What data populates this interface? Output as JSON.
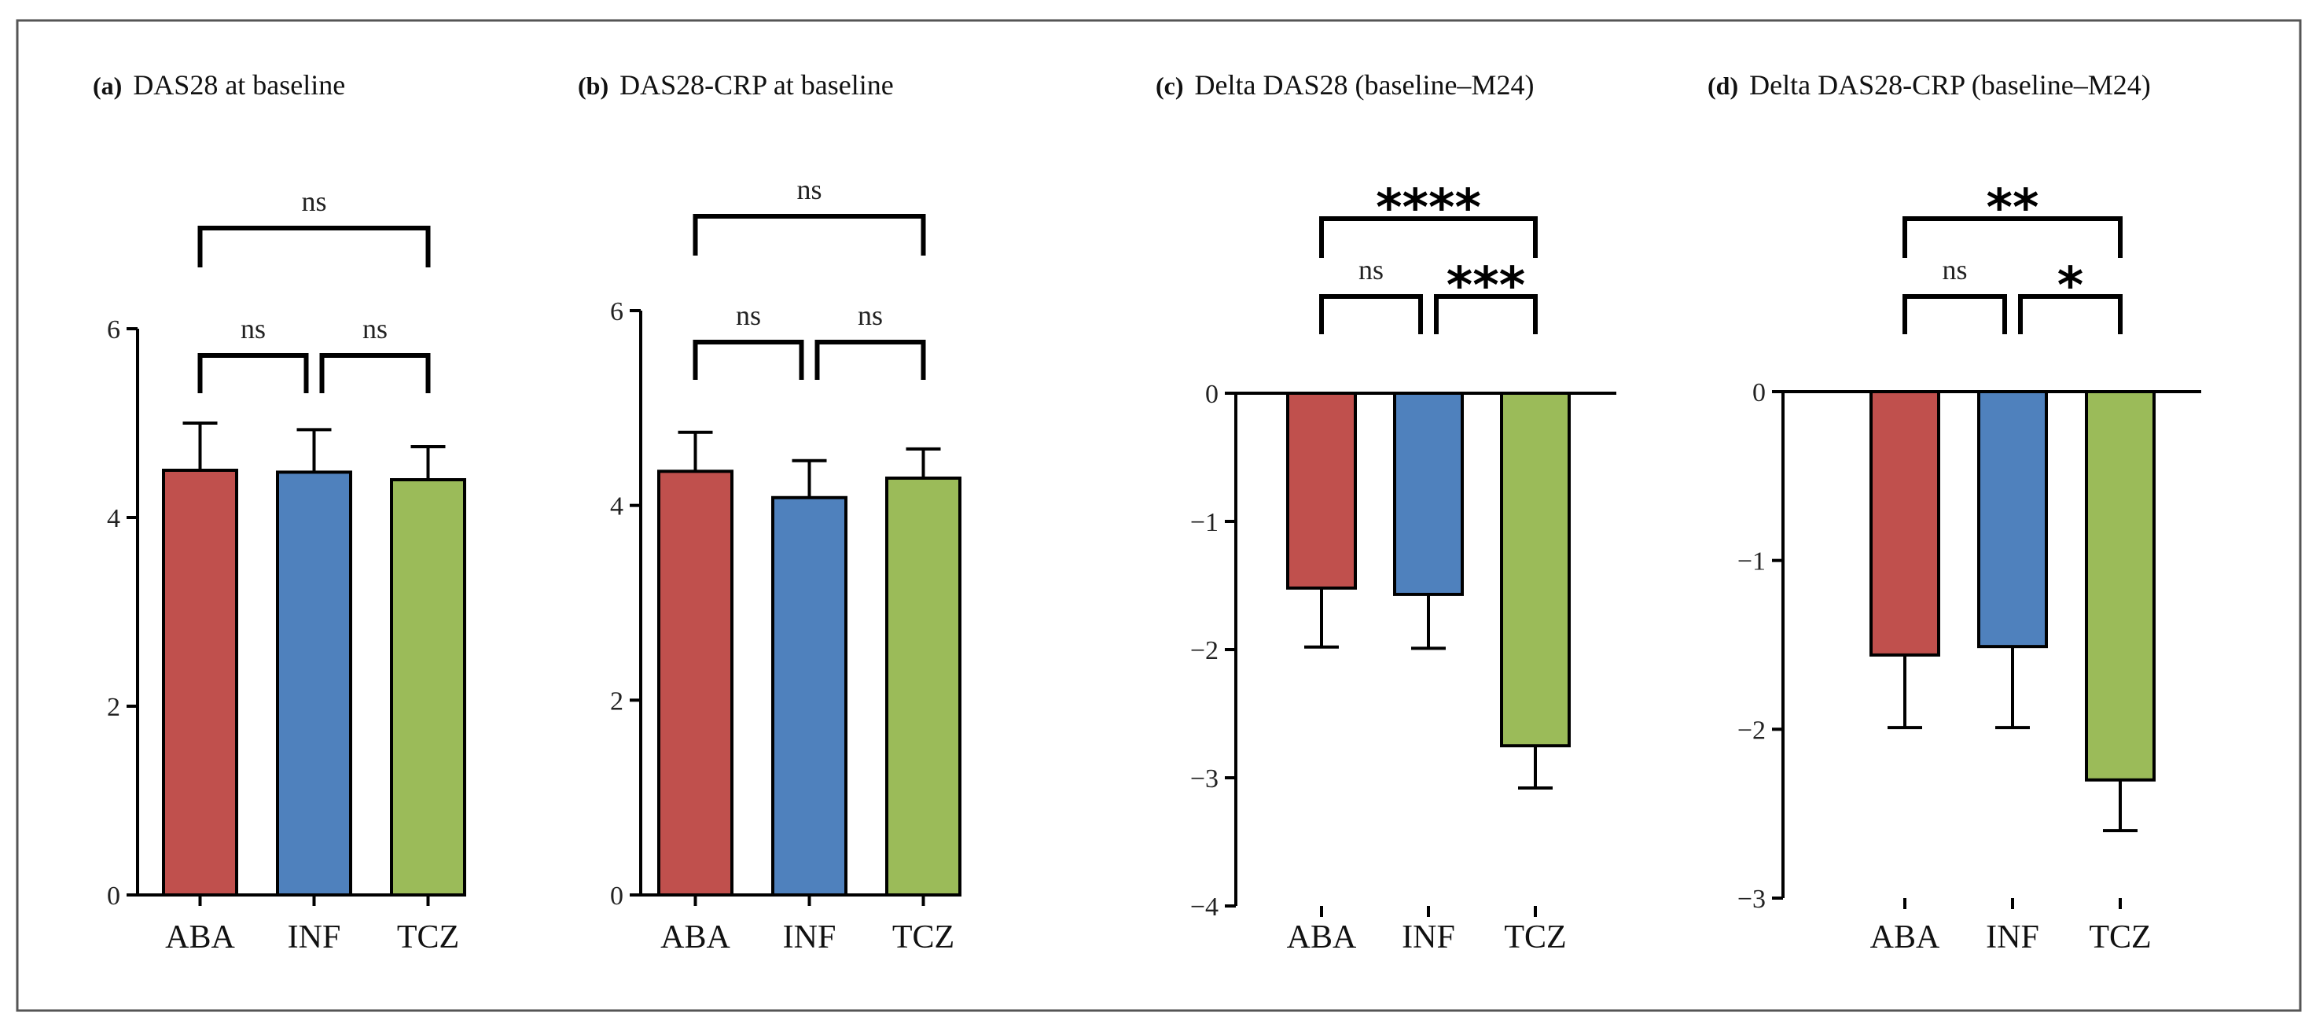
{
  "colors": {
    "ABA": "#c0504d",
    "INF": "#4f81bd",
    "TCZ": "#9bbb59"
  },
  "chart_data": [
    {
      "type": "bar",
      "panel_letter": "(a)",
      "title": "DAS28 at baseline",
      "categories": [
        "ABA",
        "INF",
        "TCZ"
      ],
      "values": [
        4.5,
        4.48,
        4.4
      ],
      "errors": [
        0.5,
        0.45,
        0.35
      ],
      "ylim": [
        0,
        6
      ],
      "yticks": [
        "0",
        "2",
        "4",
        "6"
      ],
      "ytick_values": [
        0,
        2,
        4,
        6
      ],
      "xlabel": "",
      "ylabel": "",
      "comparisons": [
        {
          "groups": [
            "ABA",
            "INF"
          ],
          "label": "ns"
        },
        {
          "groups": [
            "INF",
            "TCZ"
          ],
          "label": "ns"
        },
        {
          "groups": [
            "ABA",
            "TCZ"
          ],
          "label": "ns"
        }
      ]
    },
    {
      "type": "bar",
      "panel_letter": "(b)",
      "title": "DAS28-CRP at baseline",
      "categories": [
        "ABA",
        "INF",
        "TCZ"
      ],
      "values": [
        4.35,
        4.08,
        4.28
      ],
      "errors": [
        0.4,
        0.38,
        0.3
      ],
      "ylim": [
        0,
        6
      ],
      "yticks": [
        "0",
        "2",
        "4",
        "6"
      ],
      "ytick_values": [
        0,
        2,
        4,
        6
      ],
      "xlabel": "",
      "ylabel": "",
      "comparisons": [
        {
          "groups": [
            "ABA",
            "INF"
          ],
          "label": "ns"
        },
        {
          "groups": [
            "INF",
            "TCZ"
          ],
          "label": "ns"
        },
        {
          "groups": [
            "ABA",
            "TCZ"
          ],
          "label": "ns"
        }
      ]
    },
    {
      "type": "bar",
      "panel_letter": "(c)",
      "title": "Delta DAS28 (baseline–M24)",
      "categories": [
        "ABA",
        "INF",
        "TCZ"
      ],
      "values": [
        -1.52,
        -1.57,
        -2.75
      ],
      "errors": [
        0.46,
        0.42,
        0.33
      ],
      "ylim": [
        -4,
        0
      ],
      "yticks": [
        "−4",
        "−3",
        "−2",
        "−1",
        "0"
      ],
      "ytick_values": [
        -4,
        -3,
        -2,
        -1,
        0
      ],
      "xlabel": "",
      "ylabel": "",
      "comparisons": [
        {
          "groups": [
            "ABA",
            "INF"
          ],
          "label": "ns"
        },
        {
          "groups": [
            "INF",
            "TCZ"
          ],
          "label": "***"
        },
        {
          "groups": [
            "ABA",
            "TCZ"
          ],
          "label": "****"
        }
      ]
    },
    {
      "type": "bar",
      "panel_letter": "(d)",
      "title": "Delta DAS28-CRP (baseline–M24)",
      "categories": [
        "ABA",
        "INF",
        "TCZ"
      ],
      "values": [
        -1.56,
        -1.51,
        -2.3
      ],
      "errors": [
        0.43,
        0.48,
        0.3
      ],
      "ylim": [
        -3,
        0
      ],
      "yticks": [
        "−3",
        "−2",
        "−1",
        "0"
      ],
      "ytick_values": [
        -3,
        -2,
        -1,
        0
      ],
      "xlabel": "",
      "ylabel": "",
      "comparisons": [
        {
          "groups": [
            "ABA",
            "INF"
          ],
          "label": "ns"
        },
        {
          "groups": [
            "INF",
            "TCZ"
          ],
          "label": "*"
        },
        {
          "groups": [
            "ABA",
            "TCZ"
          ],
          "label": "**"
        }
      ]
    }
  ]
}
